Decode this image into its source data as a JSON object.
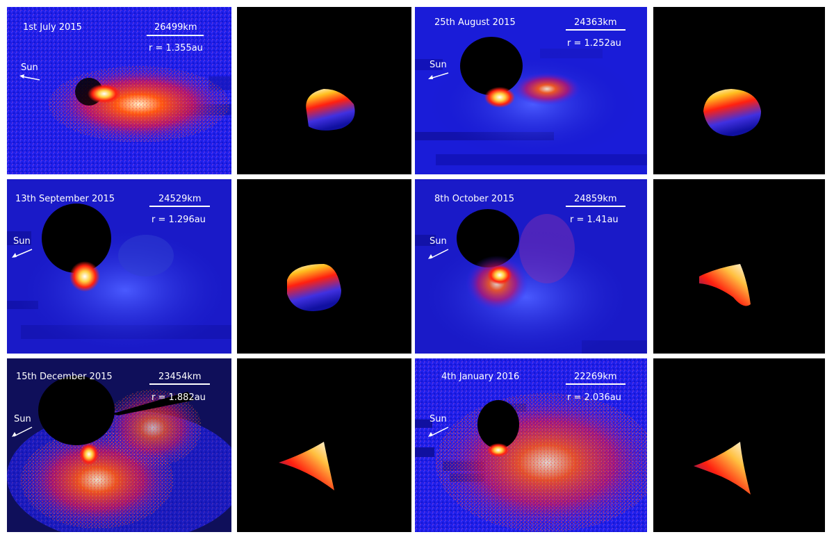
{
  "colors": {
    "background_blue": "#1a1ae6",
    "tail_red": "#ff3010",
    "core_white": "#ffffff",
    "nucleus_black": "#000000"
  },
  "sun_label": "Sun",
  "panels": [
    {
      "date": "1st July 2015",
      "scale": "26499km",
      "distance": "r = 1.355au"
    },
    {
      "date": "25th August 2015",
      "scale": "24363km",
      "distance": "r = 1.252au"
    },
    {
      "date": "13th September 2015",
      "scale": "24529km",
      "distance": "r = 1.296au"
    },
    {
      "date": "8th October 2015",
      "scale": "24859km",
      "distance": "r = 1.41au"
    },
    {
      "date": "15th December 2015",
      "scale": "23454km",
      "distance": "r = 1.882au"
    },
    {
      "date": "4th January 2016",
      "scale": "22269km",
      "distance": "r = 2.036au"
    }
  ]
}
